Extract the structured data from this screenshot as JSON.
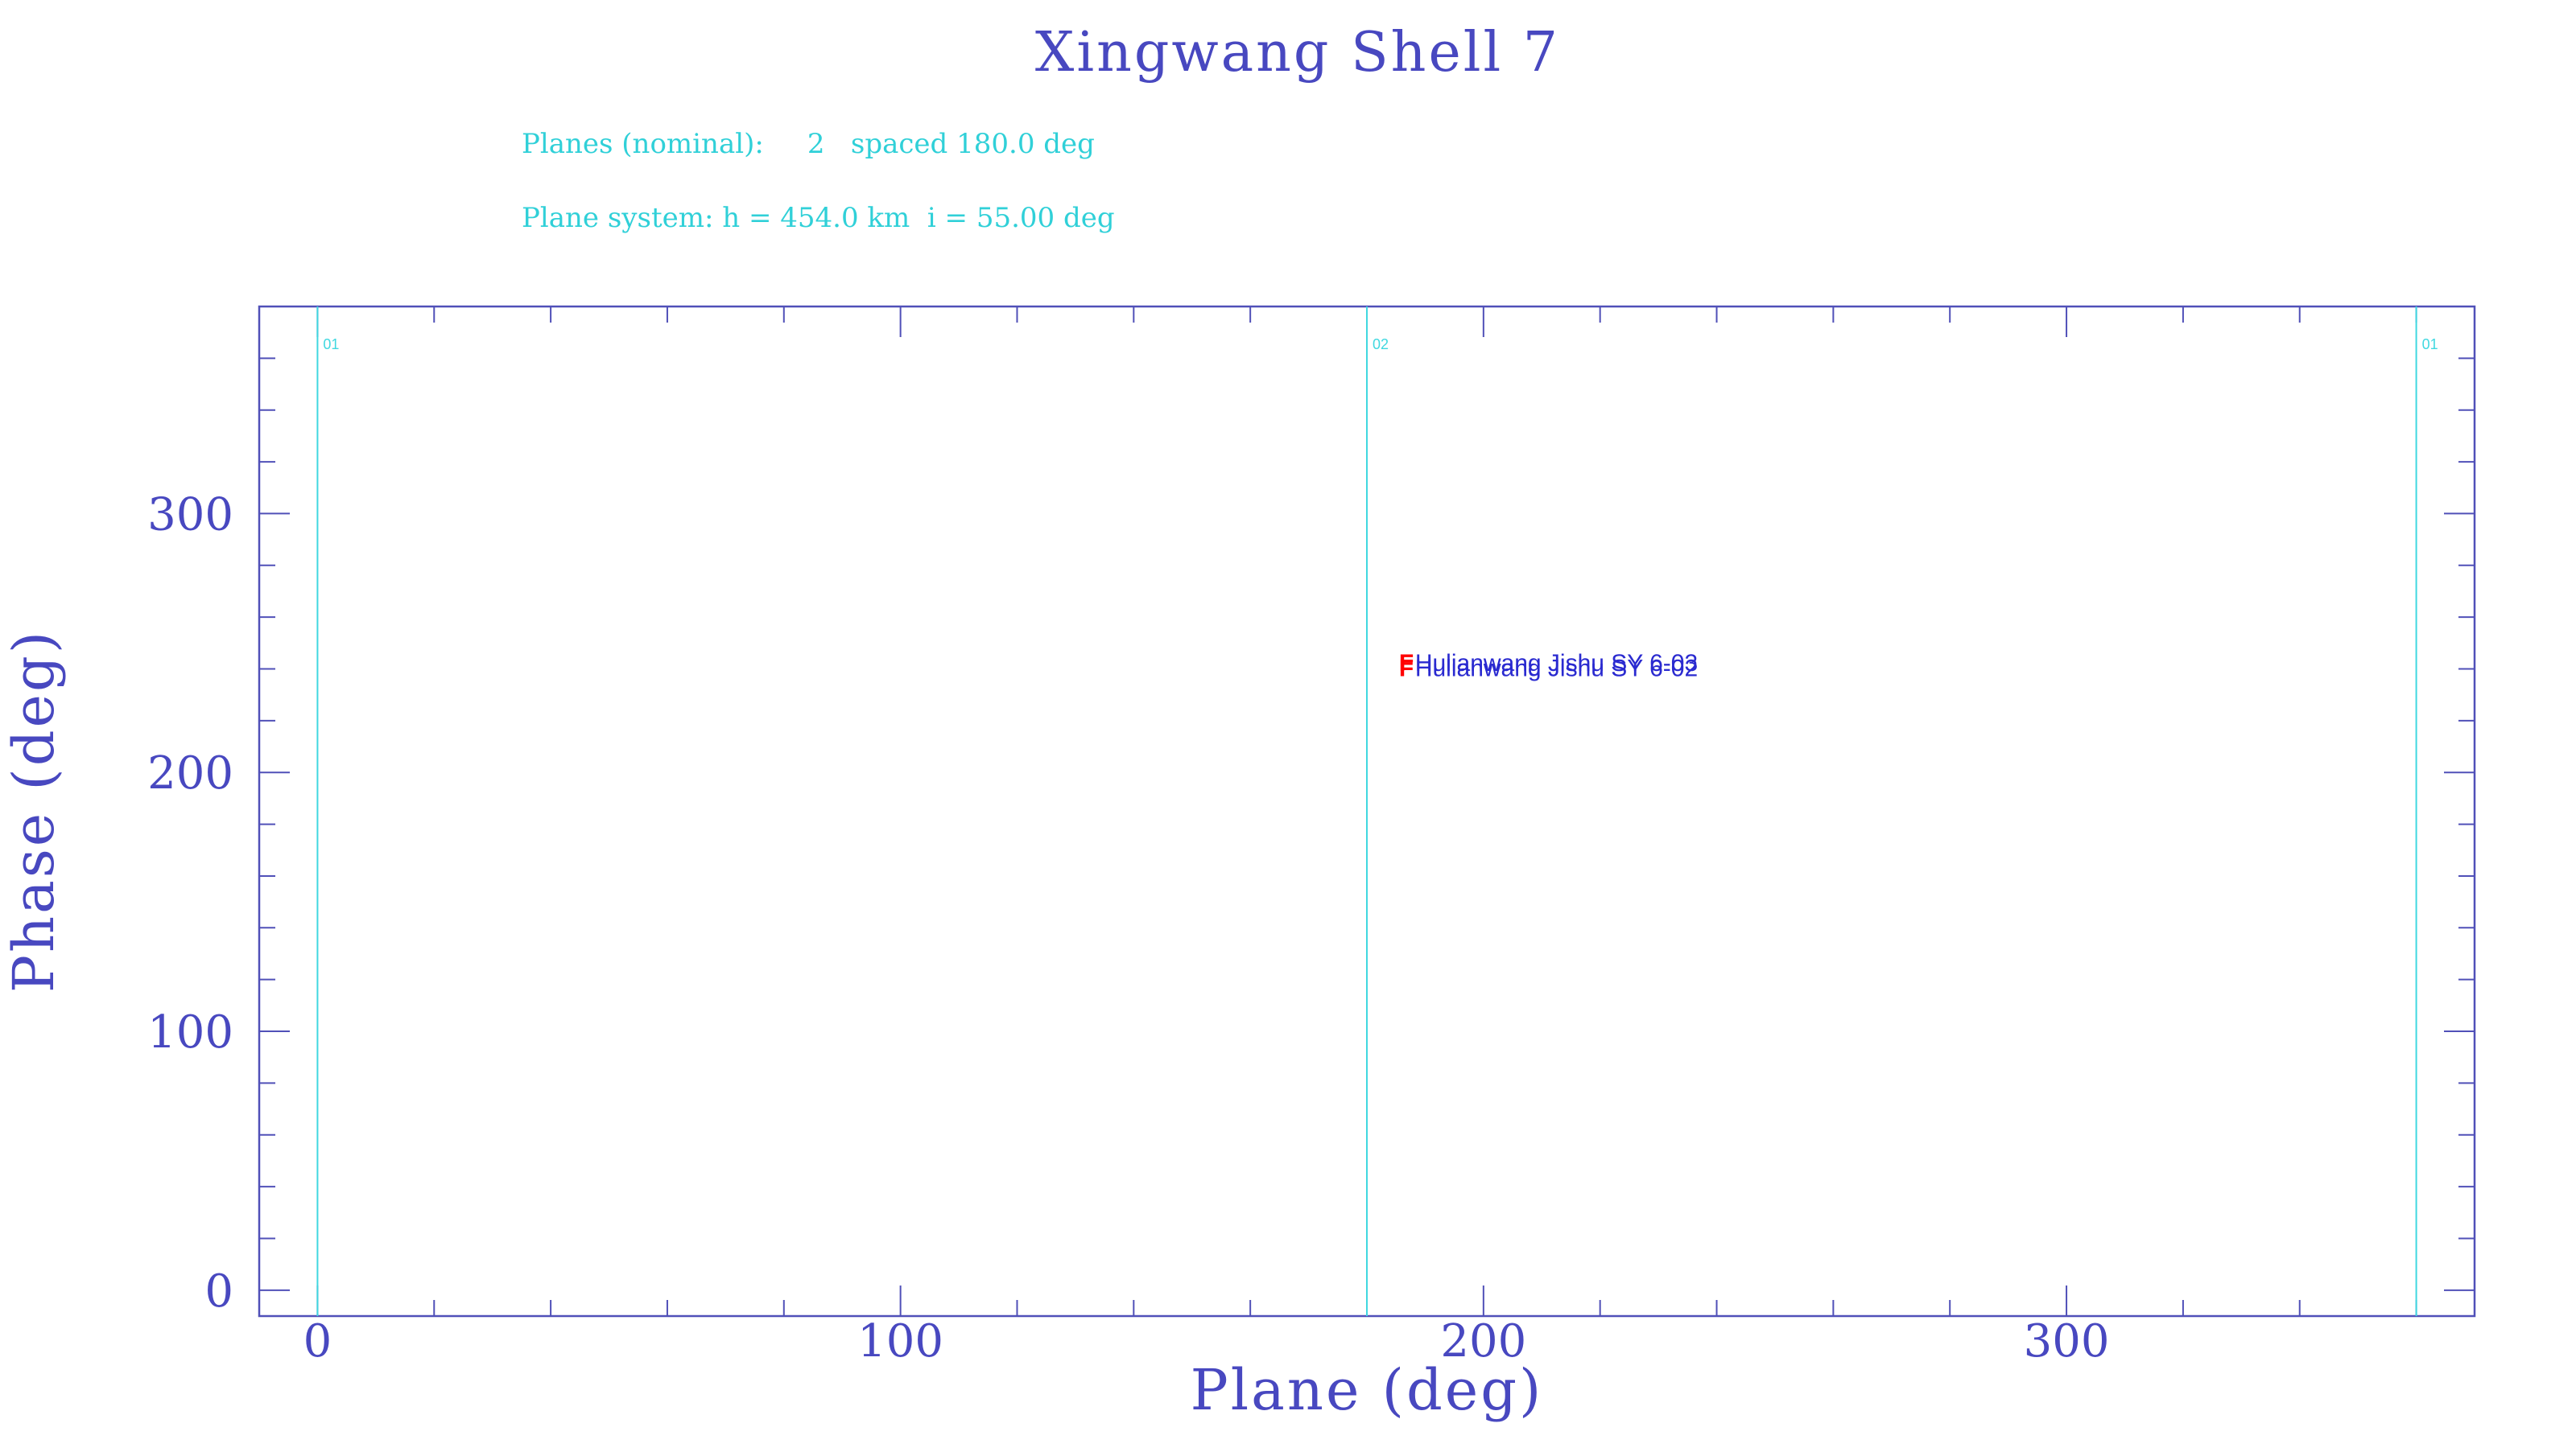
{
  "chart_data": {
    "type": "scatter",
    "title": "Xingwang Shell 7",
    "info_lines": [
      "Planes (nominal):     2   spaced 180.0 deg",
      "Plane system: h = 454.0 km  i = 55.00 deg"
    ],
    "xlabel": "Plane (deg)",
    "ylabel": "Phase (deg)",
    "xlim": [
      -10,
      370
    ],
    "ylim": [
      -10,
      380
    ],
    "xticks": [
      0,
      100,
      200,
      300
    ],
    "yticks": [
      0,
      100,
      200,
      300
    ],
    "plane_lines": [
      {
        "x": 0,
        "label": "01"
      },
      {
        "x": 180,
        "label": "02"
      },
      {
        "x": 360,
        "label": "01"
      }
    ],
    "points": [
      {
        "x": 185.5,
        "y": 243,
        "marker": "F",
        "label": "Hulianwang Jishu SY 6-03",
        "color": "#ff0000",
        "label_color": "#2a2ad0"
      },
      {
        "x": 185.5,
        "y": 241,
        "marker": "F",
        "label": "Hulianwang Jishu SY 6-02",
        "color": "#ff0000",
        "label_color": "#2a2ad0"
      }
    ],
    "grid": false,
    "colors": {
      "axes": "#5050b8",
      "text": "#4848c0",
      "info": "#30d0d8",
      "planes": "#40d8e0"
    }
  }
}
